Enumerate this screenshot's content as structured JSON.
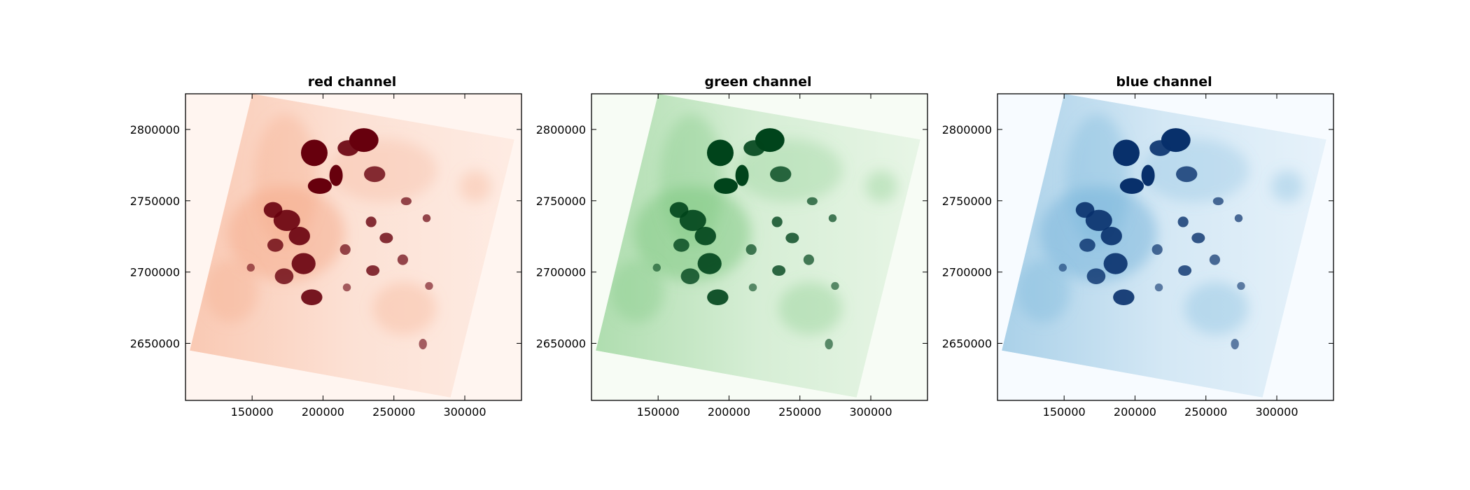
{
  "chart_data": [
    {
      "type": "heatmap",
      "title": "red channel",
      "colormap": "Reds",
      "colors": {
        "light": "#fff5f0",
        "mid": "#f4a582",
        "dark": "#67000d"
      },
      "xlim": [
        103000,
        340000
      ],
      "ylim": [
        2610000,
        2825000
      ],
      "xticks": [
        150000,
        200000,
        250000,
        300000
      ],
      "xtick_labels": [
        "150000",
        "200000",
        "250000",
        "300000"
      ],
      "yticks": [
        2650000,
        2700000,
        2750000,
        2800000
      ],
      "ytick_labels": [
        "2650000",
        "2700000",
        "2750000",
        "2800000"
      ],
      "footprint_corners": [
        [
          150000,
          2825000
        ],
        [
          335000,
          2793000
        ],
        [
          290000,
          2612000
        ],
        [
          106000,
          2645000
        ]
      ]
    },
    {
      "type": "heatmap",
      "title": "green channel",
      "colormap": "Greens",
      "colors": {
        "light": "#f7fcf5",
        "mid": "#74c476",
        "dark": "#00441b"
      },
      "xlim": [
        103000,
        340000
      ],
      "ylim": [
        2610000,
        2825000
      ],
      "xticks": [
        150000,
        200000,
        250000,
        300000
      ],
      "xtick_labels": [
        "150000",
        "200000",
        "250000",
        "300000"
      ],
      "yticks": [
        2650000,
        2700000,
        2750000,
        2800000
      ],
      "ytick_labels": [
        "2650000",
        "2700000",
        "2750000",
        "2800000"
      ],
      "footprint_corners": [
        [
          150000,
          2825000
        ],
        [
          335000,
          2793000
        ],
        [
          290000,
          2612000
        ],
        [
          106000,
          2645000
        ]
      ]
    },
    {
      "type": "heatmap",
      "title": "blue channel",
      "colormap": "Blues",
      "colors": {
        "light": "#f7fbff",
        "mid": "#6baed6",
        "dark": "#08306b"
      },
      "xlim": [
        103000,
        340000
      ],
      "ylim": [
        2610000,
        2825000
      ],
      "xticks": [
        150000,
        200000,
        250000,
        300000
      ],
      "xtick_labels": [
        "150000",
        "200000",
        "250000",
        "300000"
      ],
      "yticks": [
        2650000,
        2700000,
        2750000,
        2800000
      ],
      "ytick_labels": [
        "2650000",
        "2700000",
        "2750000",
        "2800000"
      ],
      "footprint_corners": [
        [
          150000,
          2825000
        ],
        [
          335000,
          2793000
        ],
        [
          290000,
          2612000
        ],
        [
          106000,
          2645000
        ]
      ]
    }
  ]
}
